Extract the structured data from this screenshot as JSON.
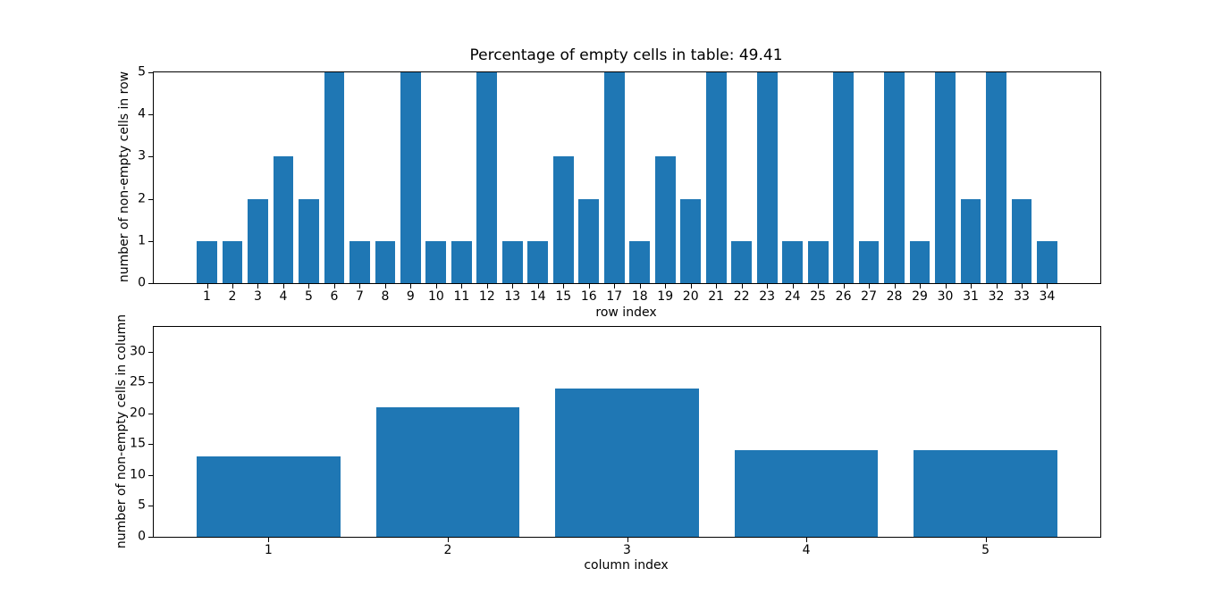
{
  "figure": {
    "background": "#ffffff",
    "bar_color": "#1f77b4",
    "axis_color": "#000000",
    "text_color": "#000000"
  },
  "chart_data": [
    {
      "type": "bar",
      "title": "Percentage of empty cells in table: 49.41",
      "xlabel": "row index",
      "ylabel": "number of non-empty cells in row",
      "categories": [
        "1",
        "2",
        "3",
        "4",
        "5",
        "6",
        "7",
        "8",
        "9",
        "10",
        "11",
        "12",
        "13",
        "14",
        "15",
        "16",
        "17",
        "18",
        "19",
        "20",
        "21",
        "22",
        "23",
        "24",
        "25",
        "26",
        "27",
        "28",
        "29",
        "30",
        "31",
        "32",
        "33",
        "34"
      ],
      "values": [
        1,
        1,
        2,
        3,
        2,
        5,
        1,
        1,
        5,
        1,
        1,
        5,
        1,
        1,
        3,
        2,
        5,
        1,
        3,
        2,
        5,
        1,
        5,
        1,
        1,
        5,
        1,
        5,
        1,
        5,
        2,
        5,
        2,
        1
      ],
      "ylim": [
        0,
        5
      ],
      "yticks": [
        0,
        1,
        2,
        3,
        4,
        5
      ],
      "bar_width": 0.8,
      "x_margin": 0.05,
      "grid": false,
      "legend": null
    },
    {
      "type": "bar",
      "title": "",
      "xlabel": "column index",
      "ylabel": "number of non-empty cells in column",
      "categories": [
        "1",
        "2",
        "3",
        "4",
        "5"
      ],
      "values": [
        13,
        21,
        24,
        14,
        14
      ],
      "ylim": [
        0,
        34
      ],
      "yticks": [
        0,
        5,
        10,
        15,
        20,
        25,
        30
      ],
      "bar_width": 0.8,
      "x_margin": 0.05,
      "grid": false,
      "legend": null
    }
  ]
}
